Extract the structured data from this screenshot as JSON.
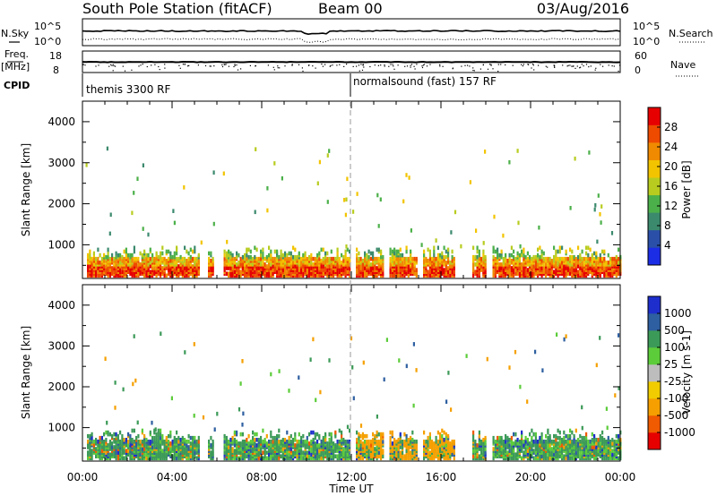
{
  "header": {
    "station": "South Pole Station (fitACF)",
    "beam": "Beam 00",
    "date": "03/Aug/2016"
  },
  "top_panels": {
    "nsky_label": "N.Sky",
    "nsearch_label": "N.Search",
    "noise_ticks": [
      "10^5",
      "10^0"
    ],
    "freq_label": "Freq.",
    "freq_unit": "[MHz]",
    "freq_ticks": [
      "18",
      "8"
    ],
    "nave_label": "Nave",
    "nave_ticks": [
      "60",
      "0"
    ],
    "cpid_label": "CPID",
    "cpid_segments": [
      "themis 3300 RF",
      "normalsound (fast) 157 RF"
    ]
  },
  "x_axis": {
    "label": "Time UT",
    "ticks": [
      "00:00",
      "04:00",
      "08:00",
      "12:00",
      "16:00",
      "20:00",
      "00:00"
    ]
  },
  "colors": {
    "power": [
      "#1c2de6",
      "#2a4fa8",
      "#3c8a6e",
      "#4cb04a",
      "#b8cc20",
      "#f2c400",
      "#f08a00",
      "#ee4a00",
      "#e60000"
    ],
    "velocity": [
      "#e60000",
      "#f05a00",
      "#f5a000",
      "#f0cc00",
      "#bdbdbd",
      "#5ccc3a",
      "#3c9a58",
      "#2e5fa0",
      "#1e2ecc"
    ],
    "marker_line": "#aaaaaa"
  },
  "chart_data": [
    {
      "type": "heatmap",
      "name": "power",
      "ylabel": "Slant Range [km]",
      "yticks": [
        "4000",
        "3000",
        "2000",
        "1000"
      ],
      "ylim": [
        180,
        4500
      ],
      "xlim_hours": [
        0,
        24
      ],
      "colorbar": {
        "label": "Power [dB]",
        "ticks": [
          "28",
          "24",
          "20",
          "16",
          "12",
          "8",
          "4"
        ],
        "range": [
          0,
          32
        ]
      },
      "scatter_bands_hours": [
        [
          0.2,
          5.2
        ],
        [
          5.6,
          5.8
        ],
        [
          6.3,
          11.9
        ],
        [
          12.2,
          13.4
        ],
        [
          13.7,
          14.9
        ],
        [
          15.2,
          16.6
        ],
        [
          17.4,
          18.0
        ],
        [
          18.3,
          24.0
        ]
      ],
      "dense_range_km": [
        200,
        900
      ]
    },
    {
      "type": "heatmap",
      "name": "velocity",
      "ylabel": "Slant Range [km]",
      "yticks": [
        "4000",
        "3000",
        "2000",
        "1000"
      ],
      "ylim": [
        180,
        4500
      ],
      "xlim_hours": [
        0,
        24
      ],
      "colorbar": {
        "label": "Velocity [m s-1]",
        "ticks": [
          "1000",
          "500",
          "100",
          "25",
          "-25",
          "-100",
          "-500",
          "-1000"
        ]
      },
      "scatter_bands_hours": [
        [
          0.2,
          5.2
        ],
        [
          5.6,
          5.8
        ],
        [
          6.3,
          11.9
        ],
        [
          12.2,
          13.4
        ],
        [
          13.7,
          14.9
        ],
        [
          15.2,
          16.6
        ],
        [
          17.4,
          18.0
        ],
        [
          18.3,
          24.0
        ]
      ],
      "dense_range_km": [
        200,
        900
      ]
    }
  ]
}
